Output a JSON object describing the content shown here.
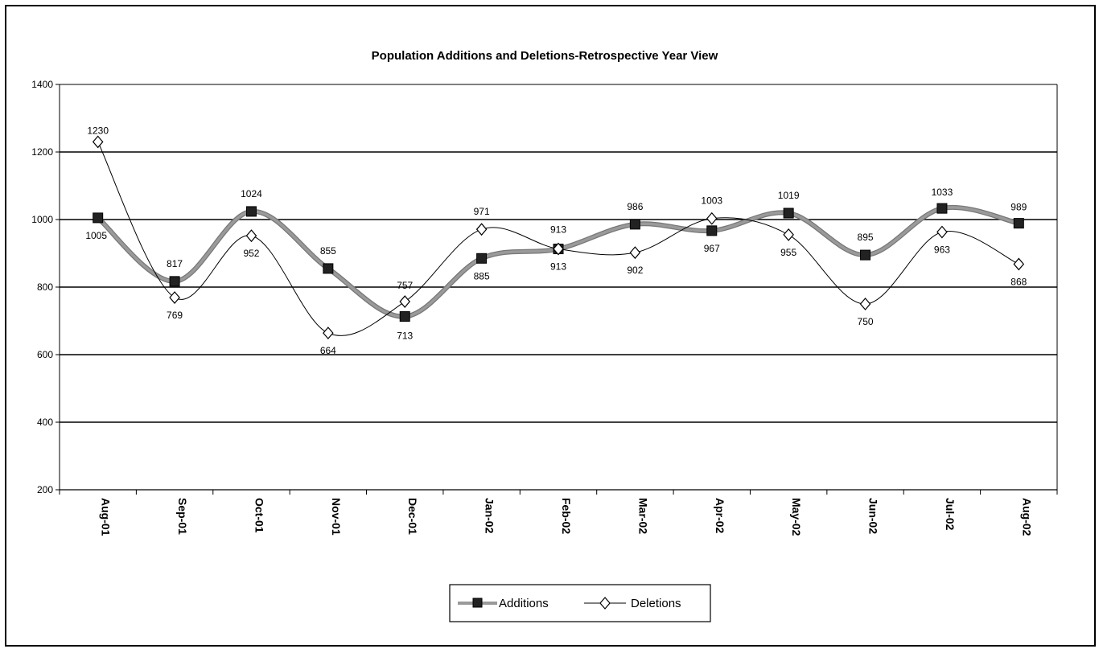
{
  "chart_data": {
    "type": "line",
    "title": "Population Additions and Deletions-Retrospective Year View",
    "xlabel": "",
    "ylabel": "",
    "categories": [
      "Aug-01",
      "Sep-01",
      "Oct-01",
      "Nov-01",
      "Dec-01",
      "Jan-02",
      "Feb-02",
      "Mar-02",
      "Apr-02",
      "May-02",
      "Jun-02",
      "Jul-02",
      "Aug-02"
    ],
    "yticks": [
      "200",
      "400",
      "600",
      "800",
      "1000",
      "1200",
      "1400"
    ],
    "ylim": [
      200,
      1400
    ],
    "grid": true,
    "smooth": true,
    "legend_position": "bottom",
    "series": [
      {
        "name": "Additions",
        "values": [
          1005,
          817,
          1024,
          855,
          713,
          885,
          913,
          986,
          967,
          1019,
          895,
          1033,
          989
        ],
        "labels": [
          "1005",
          "817",
          "1024",
          "855",
          "713",
          "885",
          "913",
          "986",
          "967",
          "1019",
          "895",
          "1033",
          "989"
        ],
        "color": "#000000",
        "line_color": "#9a9a9a",
        "marker": "square"
      },
      {
        "name": "Deletions",
        "values": [
          1230,
          769,
          952,
          664,
          757,
          971,
          913,
          902,
          1003,
          955,
          750,
          963,
          868
        ],
        "labels": [
          "1230",
          "769",
          "952",
          "664",
          "757",
          "971",
          "913",
          "902",
          "1003",
          "955",
          "750",
          "963",
          "868"
        ],
        "color": "#000000",
        "marker": "diamond"
      }
    ]
  }
}
